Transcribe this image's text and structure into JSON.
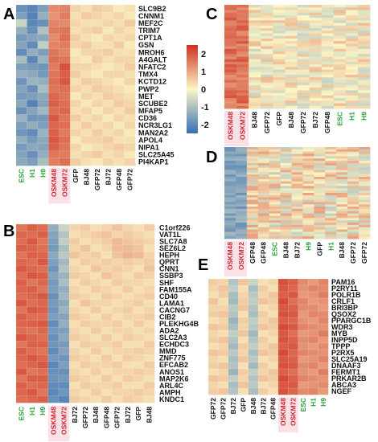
{
  "colors": {
    "low": "#3a6fb5",
    "mid": "#fbf6c6",
    "high": "#cf3020",
    "label_default": "#111111",
    "label_esc": "#23a238",
    "label_oskm": "#cc2a3a",
    "highlight_box": "#f6c8cf"
  },
  "chart_data": [
    {
      "panel": "A",
      "type": "heatmap",
      "columns": [
        "ESC",
        "H1",
        "H9",
        "OSKM48",
        "OSKM72",
        "GFP",
        "BJ48",
        "GFP72",
        "BJ72",
        "GFP48",
        "GFP72"
      ],
      "column_groups": [
        "esc",
        "esc",
        "esc",
        "oskm",
        "oskm",
        "default",
        "default",
        "default",
        "default",
        "default",
        "default"
      ],
      "rows": [
        "SLC9B2",
        "CNNM1",
        "MEF2C",
        "TRIM7",
        "CPT1A",
        "GSN",
        "MROH6",
        "A4GALT",
        "NFATC2",
        "TMX4",
        "KCTD12",
        "PWP2",
        "MET",
        "SCUBE2",
        "MFAP5",
        "CD36",
        "NCR3LG1",
        "MAN2A2",
        "APOL4",
        "NIPA1",
        "SLC25A45",
        "PI4KAP1"
      ],
      "values": [
        [
          -1.8,
          -2.0,
          -1.5,
          1.2,
          1.3,
          0.3,
          0.2,
          0.4,
          0.3,
          0.1,
          0.2
        ],
        [
          -1.5,
          -2.1,
          -1.2,
          1.1,
          1.4,
          0.2,
          0.4,
          0.3,
          0.2,
          0.3,
          0.1
        ],
        [
          -0.5,
          -2.0,
          -1.8,
          1.3,
          1.2,
          0.3,
          0.2,
          0.2,
          0.3,
          0.2,
          0.4
        ],
        [
          -1.2,
          -1.8,
          -0.8,
          1.4,
          1.5,
          0.2,
          0.3,
          0.4,
          0.1,
          0.3,
          0.2
        ],
        [
          -1.6,
          -1.4,
          -1.3,
          1.2,
          1.6,
          0.4,
          0.2,
          0.1,
          0.3,
          0.2,
          0.3
        ],
        [
          -1.4,
          -1.9,
          -0.6,
          1.3,
          1.4,
          0.3,
          0.4,
          0.2,
          0.2,
          0.4,
          0.1
        ],
        [
          -1.9,
          -1.2,
          -1.5,
          1.5,
          1.3,
          0.1,
          0.3,
          0.3,
          0.4,
          0.2,
          0.2
        ],
        [
          -0.9,
          -2.0,
          -1.1,
          1.6,
          1.5,
          0.2,
          0.1,
          0.4,
          0.2,
          0.3,
          0.3
        ],
        [
          -1.5,
          -1.6,
          -1.7,
          1.4,
          2.0,
          0.3,
          0.3,
          0.2,
          0.1,
          0.2,
          0.4
        ],
        [
          -1.2,
          -1.3,
          -1.6,
          1.5,
          1.8,
          0.4,
          0.2,
          0.1,
          0.3,
          0.3,
          0.2
        ],
        [
          -1.7,
          -1.1,
          -1.2,
          1.6,
          1.9,
          0.2,
          0.4,
          0.3,
          0.2,
          0.1,
          0.3
        ],
        [
          -1.4,
          -1.8,
          -0.9,
          1.5,
          1.6,
          0.3,
          0.2,
          0.4,
          0.3,
          0.2,
          0.1
        ],
        [
          -1.6,
          -1.5,
          -1.3,
          1.7,
          1.5,
          0.1,
          0.3,
          0.2,
          0.4,
          0.3,
          0.2
        ],
        [
          -1.3,
          -2.1,
          -1.4,
          1.8,
          1.6,
          0.3,
          0.1,
          0.3,
          0.2,
          0.4,
          0.3
        ],
        [
          -1.8,
          -1.4,
          -1.0,
          1.6,
          1.7,
          0.2,
          0.3,
          0.1,
          0.3,
          0.2,
          0.4
        ],
        [
          -1.1,
          -1.7,
          -1.6,
          1.9,
          1.5,
          0.4,
          0.2,
          0.3,
          0.1,
          0.3,
          0.2
        ],
        [
          -1.5,
          -1.2,
          -1.5,
          1.7,
          1.6,
          0.2,
          0.4,
          0.2,
          0.3,
          0.1,
          0.3
        ],
        [
          -1.7,
          -1.9,
          -1.1,
          1.8,
          1.4,
          0.3,
          0.2,
          0.4,
          0.2,
          0.3,
          0.1
        ],
        [
          -1.2,
          -1.6,
          -1.3,
          1.9,
          1.6,
          0.1,
          0.3,
          0.3,
          0.4,
          0.2,
          0.2
        ],
        [
          -1.6,
          -1.3,
          -1.4,
          1.8,
          1.5,
          0.3,
          0.1,
          0.2,
          0.3,
          0.4,
          0.3
        ],
        [
          -1.4,
          -1.8,
          -1.2,
          1.5,
          1.4,
          0.2,
          0.3,
          0.4,
          0.2,
          0.3,
          0.1
        ],
        [
          -1.3,
          -1.5,
          -0.9,
          1.4,
          1.6,
          0.4,
          0.2,
          0.1,
          0.3,
          0.2,
          0.3
        ]
      ],
      "colorbar": {
        "range": [
          -2.5,
          2.5
        ],
        "ticks": [
          "2",
          "1",
          "0",
          "-1",
          "-2"
        ]
      }
    },
    {
      "panel": "B",
      "type": "heatmap",
      "columns": [
        "ESC",
        "H1",
        "H9",
        "OSKM48",
        "OSKM72",
        "BJ72",
        "GFP72",
        "BJ48",
        "GFP48",
        "GFP72",
        "BJ72",
        "GFP",
        "BJ48"
      ],
      "column_groups": [
        "esc",
        "esc",
        "esc",
        "oskm",
        "oskm",
        "default",
        "default",
        "default",
        "default",
        "default",
        "default",
        "default",
        "default"
      ],
      "rows": [
        "C1orf226",
        "VAT1L",
        "SLC7A8",
        "SEZ6L2",
        "HEPH",
        "QPRT",
        "CNN1",
        "SSBP3",
        "SHF",
        "FAM155A",
        "CD40",
        "LAMA1",
        "CACNG7",
        "CIB2",
        "PLEKHG4B",
        "ADA2",
        "SLC2A3",
        "ECHDC3",
        "MMD",
        "ZNF775",
        "EFCAB2",
        "ANOS1",
        "MAP2K6",
        "ARL4C",
        "AMPH",
        "KNDC1"
      ],
      "values": [
        [
          1.5,
          1.8,
          1.6,
          -1.2,
          -0.5,
          0.3,
          0.4,
          0.2,
          0.3,
          0.5,
          0.3,
          0.2,
          0.4
        ],
        [
          1.7,
          1.6,
          1.8,
          -1.4,
          -0.8,
          0.2,
          0.3,
          0.4,
          0.5,
          0.3,
          0.4,
          0.3,
          0.2
        ],
        [
          1.6,
          1.9,
          1.5,
          -1.5,
          -0.6,
          0.4,
          0.2,
          0.3,
          0.4,
          0.6,
          0.5,
          0.4,
          0.3
        ],
        [
          1.8,
          1.7,
          1.6,
          -1.6,
          -0.9,
          0.3,
          0.5,
          0.2,
          0.3,
          0.6,
          0.6,
          0.5,
          0.2
        ],
        [
          1.5,
          1.8,
          1.7,
          -1.3,
          -0.7,
          0.5,
          0.3,
          0.4,
          0.2,
          0.5,
          0.7,
          0.6,
          0.3
        ],
        [
          1.7,
          1.6,
          1.9,
          -1.5,
          -1.0,
          0.2,
          0.4,
          0.3,
          0.4,
          0.3,
          0.4,
          0.3,
          0.4
        ],
        [
          1.9,
          1.7,
          1.6,
          -1.7,
          -0.8,
          0.3,
          0.2,
          0.5,
          0.3,
          0.4,
          0.3,
          0.2,
          0.5
        ],
        [
          1.6,
          1.9,
          1.8,
          -1.4,
          -1.1,
          0.4,
          0.3,
          0.2,
          0.5,
          0.3,
          0.2,
          0.4,
          0.3
        ],
        [
          1.8,
          1.5,
          1.7,
          -1.6,
          -0.9,
          0.2,
          0.4,
          0.3,
          0.2,
          0.4,
          0.3,
          0.3,
          0.2
        ],
        [
          1.7,
          1.8,
          1.5,
          -1.5,
          -1.2,
          0.3,
          0.2,
          0.4,
          0.3,
          0.2,
          0.4,
          0.2,
          0.3
        ],
        [
          1.6,
          1.7,
          1.9,
          -1.8,
          -1.0,
          0.4,
          0.3,
          0.2,
          0.4,
          0.3,
          0.2,
          0.3,
          0.4
        ],
        [
          1.9,
          1.6,
          1.7,
          -1.6,
          -1.3,
          0.2,
          0.5,
          0.3,
          0.3,
          0.2,
          0.3,
          0.4,
          0.2
        ],
        [
          1.5,
          1.9,
          1.8,
          -1.7,
          -1.1,
          0.3,
          0.2,
          0.4,
          0.2,
          0.3,
          0.4,
          0.2,
          0.3
        ],
        [
          1.8,
          1.6,
          1.6,
          -1.5,
          -1.4,
          0.4,
          0.3,
          0.2,
          0.4,
          0.2,
          0.3,
          0.3,
          0.4
        ],
        [
          1.7,
          1.8,
          1.9,
          -1.9,
          -1.2,
          0.2,
          0.4,
          0.3,
          0.3,
          0.4,
          0.2,
          0.4,
          0.2
        ],
        [
          1.6,
          1.5,
          1.7,
          -1.6,
          -1.5,
          0.3,
          0.2,
          0.4,
          0.2,
          0.3,
          0.3,
          0.2,
          0.3
        ],
        [
          1.9,
          1.7,
          1.6,
          -1.8,
          -1.3,
          0.4,
          0.3,
          0.2,
          0.4,
          0.2,
          0.4,
          0.3,
          0.2
        ],
        [
          1.5,
          1.8,
          1.8,
          -1.7,
          -1.6,
          0.2,
          0.4,
          0.3,
          0.3,
          0.4,
          0.2,
          0.2,
          0.4
        ],
        [
          1.8,
          1.6,
          1.5,
          -1.9,
          -1.4,
          0.3,
          0.2,
          0.4,
          0.2,
          0.3,
          0.3,
          0.4,
          0.3
        ],
        [
          1.7,
          1.9,
          1.7,
          -1.6,
          -1.7,
          0.4,
          0.3,
          0.2,
          0.4,
          0.2,
          0.4,
          0.3,
          0.2
        ],
        [
          1.6,
          1.7,
          1.9,
          -2.0,
          -1.5,
          0.2,
          0.4,
          0.3,
          0.3,
          0.4,
          0.2,
          0.2,
          0.4
        ],
        [
          1.9,
          1.5,
          1.6,
          -1.8,
          -1.8,
          0.3,
          0.2,
          0.4,
          0.2,
          0.3,
          0.3,
          0.4,
          0.3
        ],
        [
          1.5,
          1.8,
          1.8,
          -1.7,
          -1.6,
          0.4,
          0.3,
          0.2,
          0.4,
          0.2,
          0.4,
          0.3,
          0.2
        ],
        [
          1.8,
          1.6,
          1.7,
          -1.9,
          -1.9,
          0.2,
          0.4,
          0.3,
          0.3,
          0.4,
          0.2,
          0.2,
          0.4
        ],
        [
          1.7,
          1.9,
          1.5,
          -2.0,
          -1.7,
          0.3,
          0.2,
          0.4,
          0.2,
          0.3,
          0.3,
          0.4,
          0.3
        ],
        [
          1.6,
          1.7,
          1.8,
          -1.8,
          -2.0,
          0.4,
          0.3,
          0.2,
          0.4,
          0.2,
          0.4,
          0.3,
          0.2
        ]
      ]
    },
    {
      "panel": "C",
      "type": "heatmap",
      "columns": [
        "OSKM48",
        "OSKM72",
        "BJ48",
        "GFP72",
        "GFP",
        "BJ48",
        "GFP72",
        "BJ72",
        "GFP48",
        "ESC",
        "H1",
        "H9"
      ],
      "column_groups": [
        "oskm",
        "oskm",
        "default",
        "default",
        "default",
        "default",
        "default",
        "default",
        "default",
        "esc",
        "esc",
        "esc"
      ],
      "rows": [],
      "row_count": 40,
      "values": []
    },
    {
      "panel": "D",
      "type": "heatmap",
      "columns": [
        "OSKM48",
        "OSKM72",
        "GFP48",
        "GFP48",
        "ESC",
        "BJ48",
        "BJ72",
        "H9",
        "GFP",
        "H1",
        "BJ48",
        "GFP72",
        "GFP72"
      ],
      "column_groups": [
        "oskm",
        "oskm",
        "default",
        "default",
        "esc",
        "default",
        "default",
        "esc",
        "default",
        "esc",
        "default",
        "default",
        "default"
      ],
      "rows": [],
      "row_count": 40,
      "values": []
    },
    {
      "panel": "E",
      "type": "heatmap",
      "columns": [
        "GFP72",
        "GFP72",
        "BJ72",
        "GFP",
        "BJ48",
        "BJ72",
        "GFP48",
        "OSKM48",
        "OSKM72",
        "ESC",
        "H1",
        "H9"
      ],
      "column_groups": [
        "default",
        "default",
        "default",
        "default",
        "default",
        "default",
        "default",
        "oskm",
        "oskm",
        "esc",
        "esc",
        "esc"
      ],
      "rows": [
        "PAM16",
        "P2RY11",
        "POLR1B",
        "CRLF1",
        "BRI3BP",
        "QSOX2",
        "PPARGC1B",
        "WDR3",
        "MYB",
        "INPP5D",
        "TPPP",
        "P2RX5",
        "SLC25A19",
        "DNAAF3",
        "FERMT1",
        "PRKAR2B",
        "ABCA3",
        "NGEF"
      ],
      "values": [
        [
          0.4,
          0.3,
          -0.8,
          0.5,
          -0.5,
          0.2,
          0.3,
          2.0,
          1.8,
          1.2,
          1.0,
          1.3
        ],
        [
          0.3,
          0.5,
          -0.6,
          0.2,
          -0.9,
          0.4,
          0.2,
          1.9,
          1.7,
          1.1,
          1.3,
          1.2
        ],
        [
          0.2,
          0.4,
          -0.9,
          0.3,
          -0.7,
          0.3,
          0.5,
          1.8,
          1.9,
          1.0,
          1.1,
          1.4
        ],
        [
          0.5,
          0.2,
          -1.0,
          0.4,
          -0.6,
          0.5,
          0.4,
          2.1,
          1.6,
          1.3,
          1.0,
          1.1
        ],
        [
          0.3,
          0.3,
          -0.7,
          0.5,
          -0.8,
          0.2,
          0.3,
          1.9,
          1.8,
          1.2,
          1.2,
          1.0
        ],
        [
          0.4,
          0.5,
          -0.8,
          0.2,
          -0.9,
          0.4,
          0.2,
          2.0,
          1.9,
          1.0,
          1.3,
          1.2
        ],
        [
          0.2,
          0.3,
          -1.1,
          0.4,
          -0.6,
          0.3,
          0.5,
          1.8,
          1.7,
          1.1,
          1.0,
          1.3
        ],
        [
          0.5,
          0.4,
          -0.9,
          0.3,
          -0.7,
          0.5,
          0.4,
          2.1,
          1.9,
          1.3,
          1.2,
          1.1
        ],
        [
          0.3,
          0.2,
          -0.6,
          0.5,
          -1.0,
          0.2,
          0.3,
          1.9,
          1.6,
          1.0,
          1.1,
          1.4
        ],
        [
          0.4,
          0.5,
          -0.8,
          0.2,
          -0.8,
          0.4,
          0.2,
          2.0,
          1.8,
          1.2,
          1.3,
          1.0
        ],
        [
          0.2,
          0.3,
          -1.0,
          0.4,
          -0.6,
          0.3,
          0.5,
          1.8,
          1.9,
          1.1,
          1.0,
          1.2
        ],
        [
          0.5,
          0.4,
          -0.7,
          0.3,
          -0.9,
          0.5,
          0.4,
          2.1,
          1.7,
          1.3,
          1.2,
          1.1
        ],
        [
          0.3,
          0.2,
          -0.9,
          0.5,
          -0.7,
          0.2,
          0.3,
          1.9,
          1.8,
          1.0,
          1.1,
          1.3
        ],
        [
          0.4,
          0.5,
          -0.8,
          0.2,
          -1.0,
          0.4,
          0.2,
          2.0,
          1.9,
          1.2,
          1.3,
          1.0
        ],
        [
          0.2,
          0.3,
          -1.1,
          0.4,
          -0.6,
          0.3,
          0.5,
          1.8,
          1.6,
          1.1,
          1.0,
          1.4
        ],
        [
          0.5,
          0.4,
          -0.6,
          0.3,
          -0.8,
          0.5,
          0.4,
          2.1,
          1.8,
          1.3,
          1.2,
          1.1
        ],
        [
          0.3,
          0.2,
          -0.9,
          0.5,
          -0.7,
          0.2,
          0.3,
          1.9,
          1.9,
          1.0,
          1.1,
          1.2
        ],
        [
          0.4,
          0.5,
          -0.8,
          0.2,
          -0.9,
          0.4,
          0.2,
          2.0,
          1.7,
          1.2,
          1.3,
          1.0
        ]
      ]
    }
  ]
}
